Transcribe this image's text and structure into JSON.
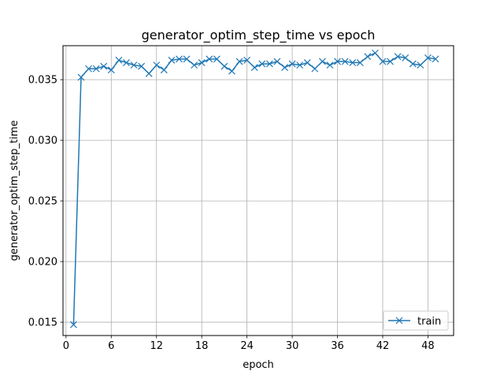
{
  "chart_data": {
    "type": "line",
    "title": "generator_optim_step_time vs epoch",
    "xlabel": "epoch",
    "ylabel": "generator_optim_step_time",
    "xlim": [
      -0.4,
      51.4
    ],
    "ylim": [
      0.0139,
      0.0378
    ],
    "xticks": [
      0,
      6,
      12,
      18,
      24,
      30,
      36,
      42,
      48
    ],
    "xtick_labels": [
      "0",
      "6",
      "12",
      "18",
      "24",
      "30",
      "36",
      "42",
      "48"
    ],
    "yticks": [
      0.015,
      0.02,
      0.025,
      0.03,
      0.035
    ],
    "ytick_labels": [
      "0.015",
      "0.020",
      "0.025",
      "0.030",
      "0.035"
    ],
    "grid": true,
    "legend_position": "lower right",
    "marker": "x",
    "color": "#1f77b4",
    "series": [
      {
        "name": "train",
        "x": [
          1,
          2,
          3,
          4,
          5,
          6,
          7,
          8,
          9,
          10,
          11,
          12,
          13,
          14,
          15,
          16,
          17,
          18,
          19,
          20,
          21,
          22,
          23,
          24,
          25,
          26,
          27,
          28,
          29,
          30,
          31,
          32,
          33,
          34,
          35,
          36,
          37,
          38,
          39,
          40,
          41,
          42,
          43,
          44,
          45,
          46,
          47,
          48,
          49
        ],
        "values": [
          0.0148,
          0.0352,
          0.0359,
          0.0359,
          0.0361,
          0.0358,
          0.0366,
          0.0364,
          0.0362,
          0.0361,
          0.0355,
          0.0362,
          0.0358,
          0.0366,
          0.0367,
          0.0367,
          0.0362,
          0.0364,
          0.0367,
          0.0367,
          0.0361,
          0.0357,
          0.0365,
          0.0366,
          0.036,
          0.0363,
          0.0363,
          0.0365,
          0.036,
          0.0363,
          0.0362,
          0.0364,
          0.0359,
          0.0365,
          0.0362,
          0.0365,
          0.0365,
          0.0364,
          0.0364,
          0.0369,
          0.0372,
          0.0365,
          0.0365,
          0.0369,
          0.0368,
          0.0363,
          0.0362,
          0.0368,
          0.0367
        ]
      }
    ]
  }
}
